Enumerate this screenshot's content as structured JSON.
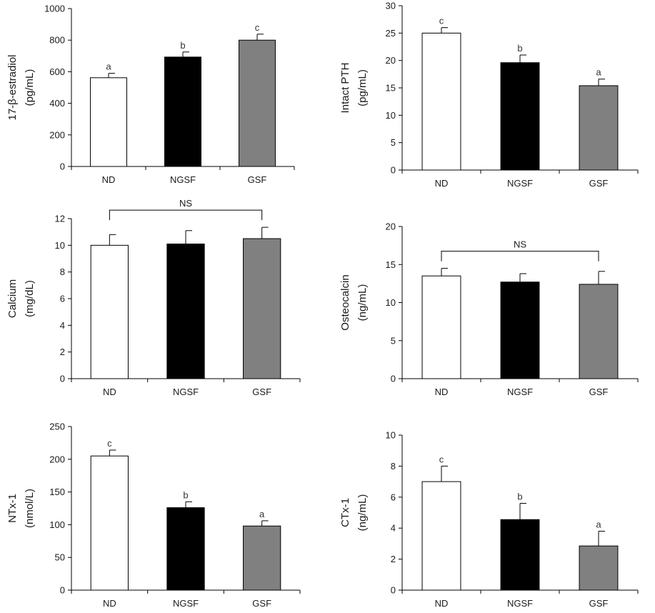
{
  "figure": {
    "colors": {
      "ND": "#ffffff",
      "NGSF": "#000000",
      "GSF": "#808080",
      "axis": "#000000"
    }
  },
  "chart_data": [
    {
      "type": "bar",
      "title": "",
      "categories": [
        "ND",
        "NGSF",
        "GSF"
      ],
      "ylabel": [
        "17-β-estradiol",
        "(pg/mL)"
      ],
      "ylim": [
        0,
        1000
      ],
      "yticks": [
        0,
        200,
        400,
        600,
        800,
        1000
      ],
      "values": [
        562,
        693,
        800
      ],
      "errors": [
        28,
        32,
        38
      ],
      "sig_letters": [
        "a",
        "b",
        "c"
      ],
      "ns_label": ""
    },
    {
      "type": "bar",
      "title": "",
      "categories": [
        "ND",
        "NGSF",
        "GSF"
      ],
      "ylabel": [
        "Intact PTH",
        "(pg/mL)"
      ],
      "ylim": [
        0,
        30
      ],
      "yticks": [
        0,
        5,
        10,
        15,
        20,
        25,
        30
      ],
      "values": [
        25,
        19.6,
        15.4
      ],
      "errors": [
        1.0,
        1.4,
        1.2
      ],
      "sig_letters": [
        "c",
        "b",
        "a"
      ],
      "ns_label": ""
    },
    {
      "type": "bar",
      "title": "",
      "categories": [
        "ND",
        "NGSF",
        "GSF"
      ],
      "ylabel": [
        "Calcium",
        "(mg/dL)"
      ],
      "ylim": [
        0,
        12
      ],
      "yticks": [
        0,
        2,
        4,
        6,
        8,
        10,
        12
      ],
      "values": [
        10.0,
        10.1,
        10.5
      ],
      "errors": [
        0.8,
        1.0,
        0.85
      ],
      "sig_letters": [
        "",
        "",
        ""
      ],
      "ns_label": "NS"
    },
    {
      "type": "bar",
      "title": "",
      "categories": [
        "ND",
        "NGSF",
        "GSF"
      ],
      "ylabel": [
        "Osteocalcin",
        "(ng/mL)"
      ],
      "ylim": [
        0,
        20
      ],
      "yticks": [
        0,
        5,
        10,
        15,
        20
      ],
      "values": [
        13.5,
        12.7,
        12.4
      ],
      "errors": [
        1.0,
        1.1,
        1.7
      ],
      "sig_letters": [
        "",
        "",
        ""
      ],
      "ns_label": "NS"
    },
    {
      "type": "bar",
      "title": "",
      "categories": [
        "ND",
        "NGSF",
        "GSF"
      ],
      "ylabel": [
        "NTx-1",
        "(nmol/L)"
      ],
      "ylim": [
        0,
        250
      ],
      "yticks": [
        0,
        50,
        100,
        150,
        200,
        250
      ],
      "values": [
        205,
        126,
        98
      ],
      "errors": [
        9,
        9,
        8
      ],
      "sig_letters": [
        "c",
        "b",
        "a"
      ],
      "ns_label": ""
    },
    {
      "type": "bar",
      "title": "",
      "categories": [
        "ND",
        "NGSF",
        "GSF"
      ],
      "ylabel": [
        "CTx-1",
        "(ng/mL)"
      ],
      "ylim": [
        0,
        10
      ],
      "yticks": [
        0,
        2,
        4,
        6,
        8,
        10
      ],
      "values": [
        7.0,
        4.55,
        2.85
      ],
      "errors": [
        1.0,
        1.05,
        0.95
      ],
      "sig_letters": [
        "c",
        "b",
        "a"
      ],
      "ns_label": ""
    }
  ]
}
